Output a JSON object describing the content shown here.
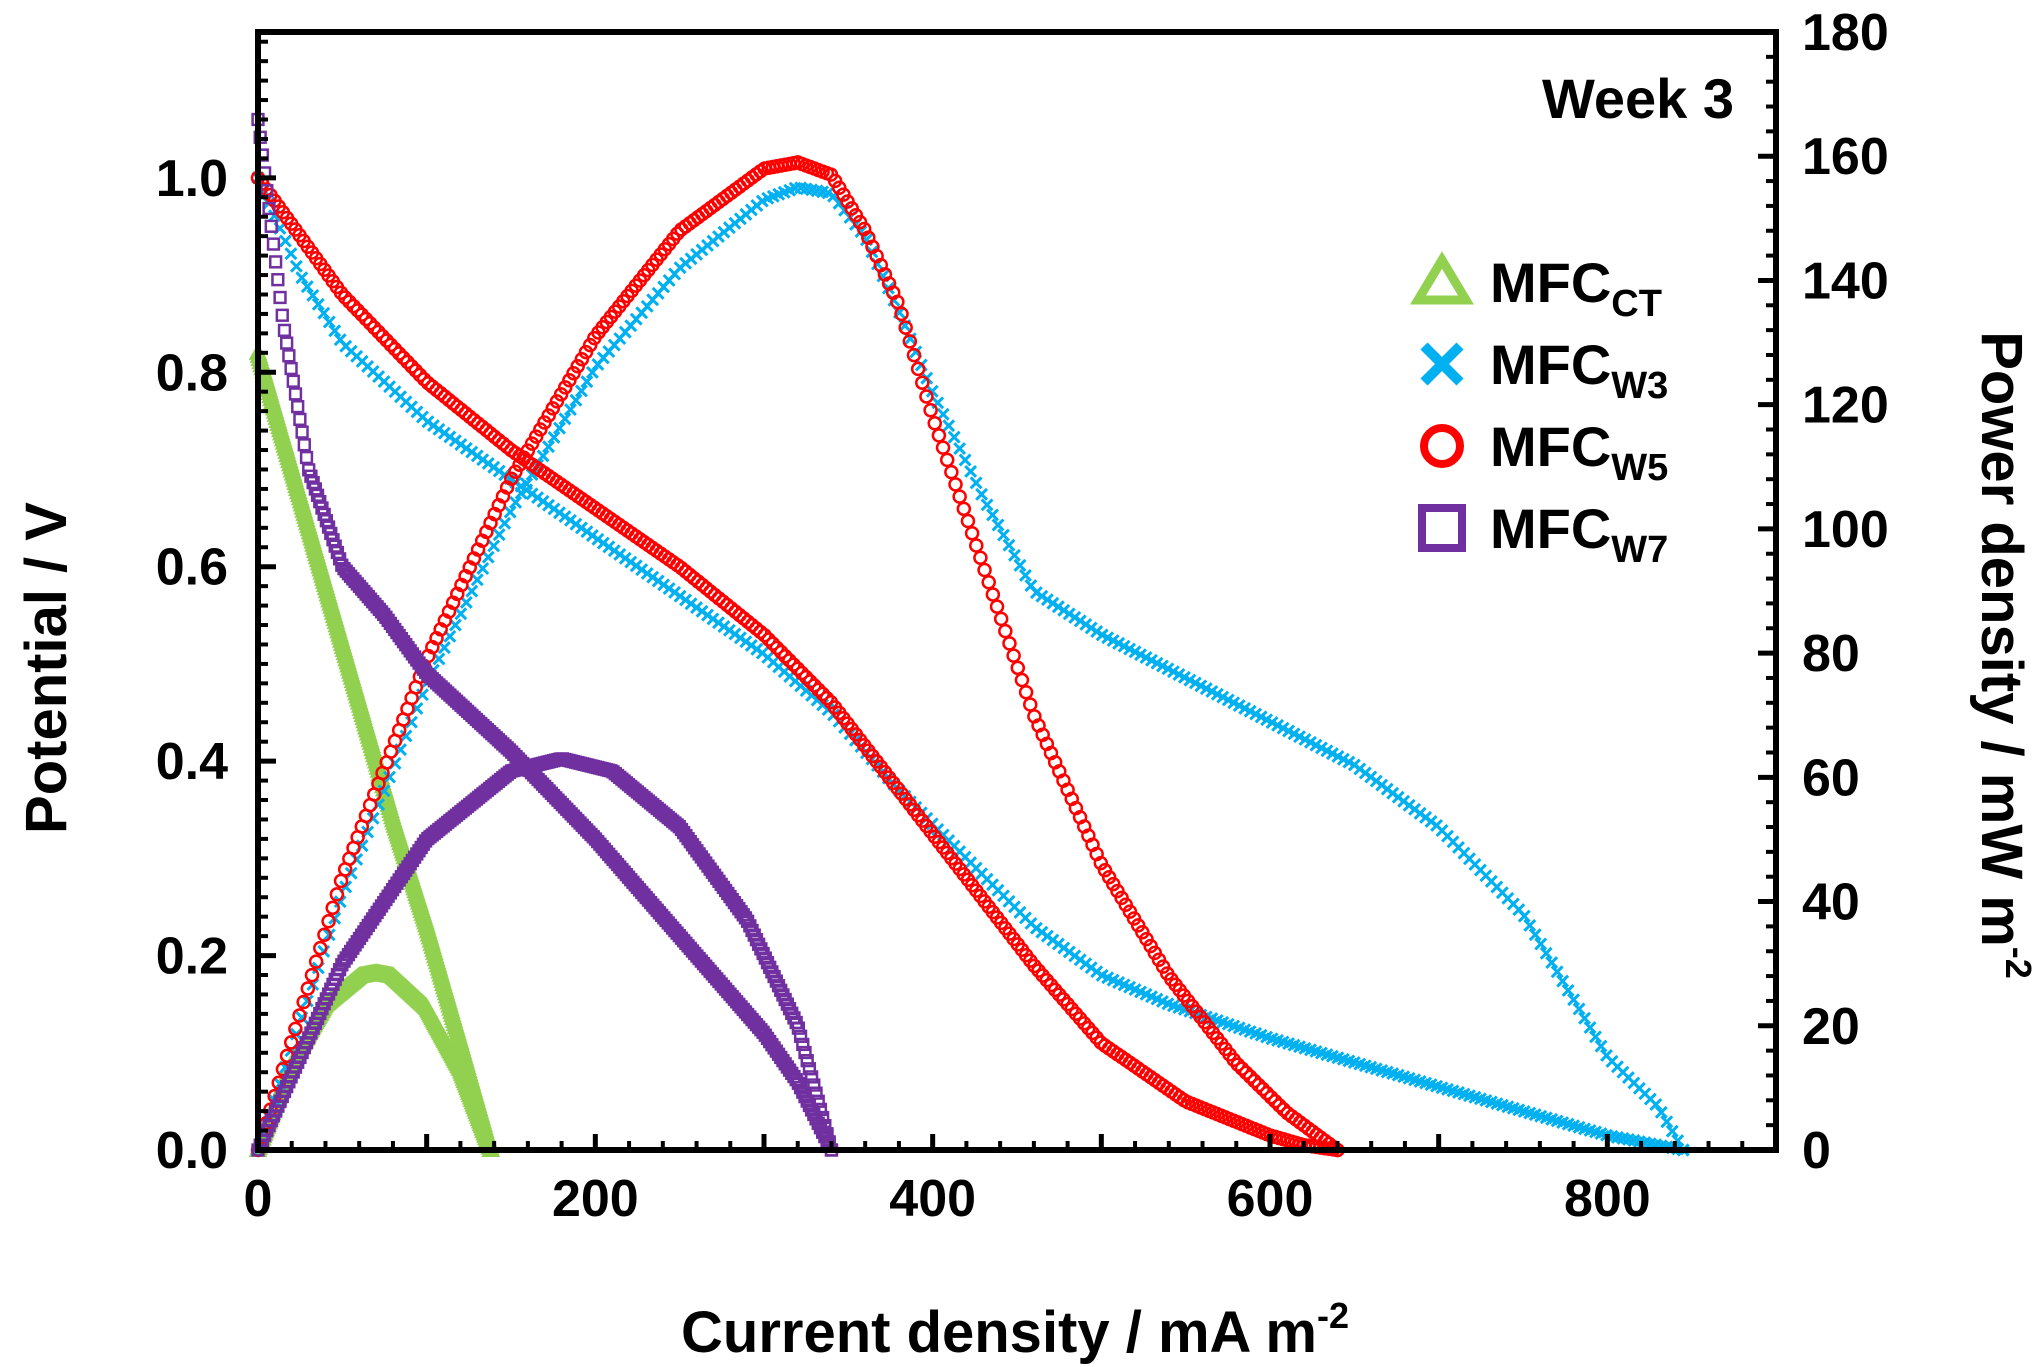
{
  "chart_data": {
    "type": "scatter",
    "title": "",
    "annotation": "Week 3",
    "xlabel": {
      "main": "Current density / mA m",
      "sup": "-2"
    },
    "ylabel": "Potential / V",
    "y2label": {
      "main": "Power density / mW m",
      "sup": "-2"
    },
    "xlim": [
      0,
      900
    ],
    "ylim": [
      0,
      1.15
    ],
    "y2lim": [
      0,
      180
    ],
    "x_ticks": [
      0,
      200,
      400,
      600,
      800
    ],
    "x_tick_labels": [
      "0",
      "200",
      "400",
      "600",
      "800"
    ],
    "y_ticks": [
      0,
      0.2,
      0.4,
      0.6,
      0.8,
      1.0
    ],
    "y_tick_labels": [
      "0.0",
      "0.2",
      "0.4",
      "0.6",
      "0.8",
      "1.0"
    ],
    "y2_ticks": [
      0,
      20,
      40,
      60,
      80,
      100,
      120,
      140,
      160,
      180
    ],
    "y2_tick_labels": [
      "0",
      "20",
      "40",
      "60",
      "80",
      "100",
      "120",
      "140",
      "160",
      "180"
    ],
    "legend_position": "upper-right",
    "series": [
      {
        "name": "MFC",
        "sub": "CT",
        "marker": "triangle",
        "color": "#92d050",
        "polarization": {
          "x": [
            0,
            20,
            40,
            60,
            80,
            100,
            120,
            138
          ],
          "y": [
            0.82,
            0.7,
            0.58,
            0.46,
            0.34,
            0.23,
            0.11,
            0.0
          ]
        },
        "power": {
          "x": [
            0,
            20,
            40,
            60,
            70,
            80,
            100,
            120,
            138
          ],
          "y": [
            0,
            14,
            23.5,
            28,
            28.5,
            28,
            23,
            13,
            0
          ]
        }
      },
      {
        "name": "MFC",
        "sub": "W3",
        "marker": "x",
        "color": "#00b0f0",
        "polarization": {
          "x": [
            0,
            25,
            50,
            100,
            150,
            200,
            250,
            300,
            340,
            380,
            420,
            460,
            500,
            540,
            600,
            650,
            700,
            750,
            800,
            830,
            845
          ],
          "y": [
            1.0,
            0.9,
            0.83,
            0.75,
            0.69,
            0.63,
            0.57,
            0.51,
            0.45,
            0.37,
            0.3,
            0.23,
            0.18,
            0.15,
            0.115,
            0.09,
            0.065,
            0.04,
            0.015,
            0.005,
            0.0
          ]
        },
        "power": {
          "x": [
            0,
            50,
            100,
            150,
            200,
            250,
            300,
            320,
            340,
            360,
            380,
            400,
            430,
            460,
            500,
            550,
            600,
            650,
            700,
            750,
            800,
            830,
            845
          ],
          "y": [
            0,
            41,
            75,
            103,
            126,
            142,
            153,
            155,
            154,
            147,
            135,
            122,
            105,
            90,
            83,
            76,
            69,
            62,
            52,
            38,
            15,
            7,
            0
          ]
        }
      },
      {
        "name": "MFC",
        "sub": "W5",
        "marker": "circle",
        "color": "#ff0000",
        "polarization": {
          "x": [
            0,
            25,
            50,
            100,
            150,
            200,
            250,
            300,
            340,
            380,
            420,
            460,
            500,
            550,
            600,
            620,
            640
          ],
          "y": [
            1.0,
            0.94,
            0.88,
            0.79,
            0.72,
            0.66,
            0.6,
            0.53,
            0.46,
            0.37,
            0.28,
            0.19,
            0.11,
            0.05,
            0.015,
            0.005,
            0.0
          ]
        },
        "power": {
          "x": [
            0,
            50,
            100,
            150,
            200,
            250,
            300,
            320,
            340,
            360,
            380,
            400,
            430,
            460,
            500,
            540,
            580,
            610,
            640
          ],
          "y": [
            0,
            44,
            79,
            108,
            131,
            148,
            158,
            159,
            157,
            148,
            136,
            118,
            94,
            70,
            46,
            28,
            14,
            6,
            0
          ]
        }
      },
      {
        "name": "MFC",
        "sub": "W7",
        "marker": "square",
        "color": "#7030a0",
        "polarization": {
          "x": [
            0,
            15,
            30,
            50,
            75,
            100,
            150,
            200,
            250,
            300,
            320,
            340
          ],
          "y": [
            1.06,
            0.85,
            0.7,
            0.6,
            0.55,
            0.49,
            0.41,
            0.32,
            0.22,
            0.12,
            0.07,
            0.0
          ]
        },
        "power": {
          "x": [
            0,
            50,
            100,
            150,
            180,
            210,
            250,
            290,
            320,
            340
          ],
          "y": [
            0,
            30,
            50,
            61,
            63,
            61,
            52,
            37,
            20,
            0
          ]
        }
      }
    ]
  }
}
